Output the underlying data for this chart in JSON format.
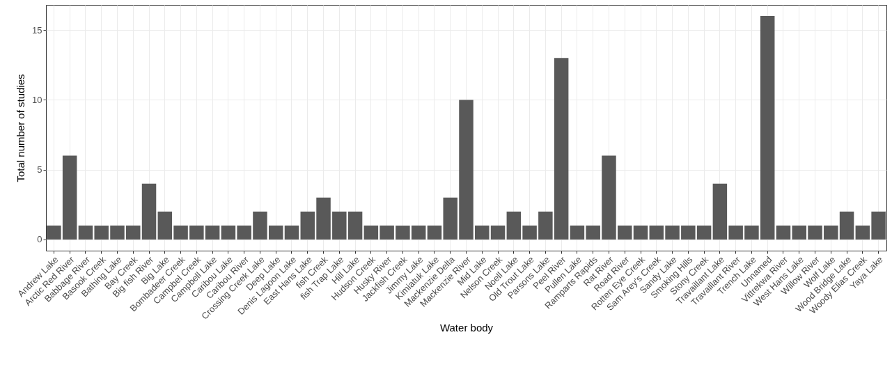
{
  "chart_data": {
    "type": "bar",
    "xlabel": "Water body",
    "ylabel": "Total number of studies",
    "categories": [
      "Andrew Lake",
      "Arctic Red River",
      "Babbage River",
      "Basook Creek",
      "Bathing Lake",
      "Bay Creek",
      "Big fish River",
      "Big Lake",
      "Bombadeer Creek",
      "Campbel Creek",
      "Campbell Lake",
      "Caribou Lake",
      "Caribou River",
      "Crossing Creek Lake",
      "Deep Lake",
      "Denis Lagoon Lake",
      "East Hans Lake",
      "fish Creek",
      "fish Trap Lake",
      "Hill Lake",
      "Hudson Creek",
      "Husky River",
      "Jackfish Creek",
      "Jimmy Lake",
      "Kimiatuk Lake",
      "Mackenzie Delta",
      "Mackenzie River",
      "Mid Lake",
      "Nelson Creek",
      "Noell Lake",
      "Old Trout Lake",
      "Parsons Lake",
      "Peel River",
      "Pullen Lake",
      "Ramparts Rapids",
      "Rat River",
      "Road River",
      "Rotten Eye Creek",
      "Sam Arey's Creek",
      "Sandy Lake",
      "Smoking Hills",
      "Stony Creek",
      "Travaillant Lake",
      "Travaillant River",
      "Trench Lake",
      "Unnamed",
      "Vittrekwa River",
      "West Hans Lake",
      "Willow River",
      "Wolf Lake",
      "Wood Bridge Lake",
      "Woody Elias Creek",
      "Yaya Lake"
    ],
    "values": [
      1,
      6,
      1,
      1,
      1,
      1,
      4,
      2,
      1,
      1,
      1,
      1,
      1,
      2,
      1,
      1,
      2,
      3,
      2,
      2,
      1,
      1,
      1,
      1,
      1,
      3,
      10,
      1,
      1,
      2,
      1,
      2,
      13,
      1,
      1,
      6,
      1,
      1,
      1,
      1,
      1,
      1,
      4,
      1,
      1,
      16,
      1,
      1,
      1,
      1,
      2,
      1,
      2
    ],
    "color": "#595959",
    "ylim": [
      -0.8,
      16.8
    ],
    "yticks": [
      0,
      5,
      10,
      15
    ],
    "grid": true
  }
}
